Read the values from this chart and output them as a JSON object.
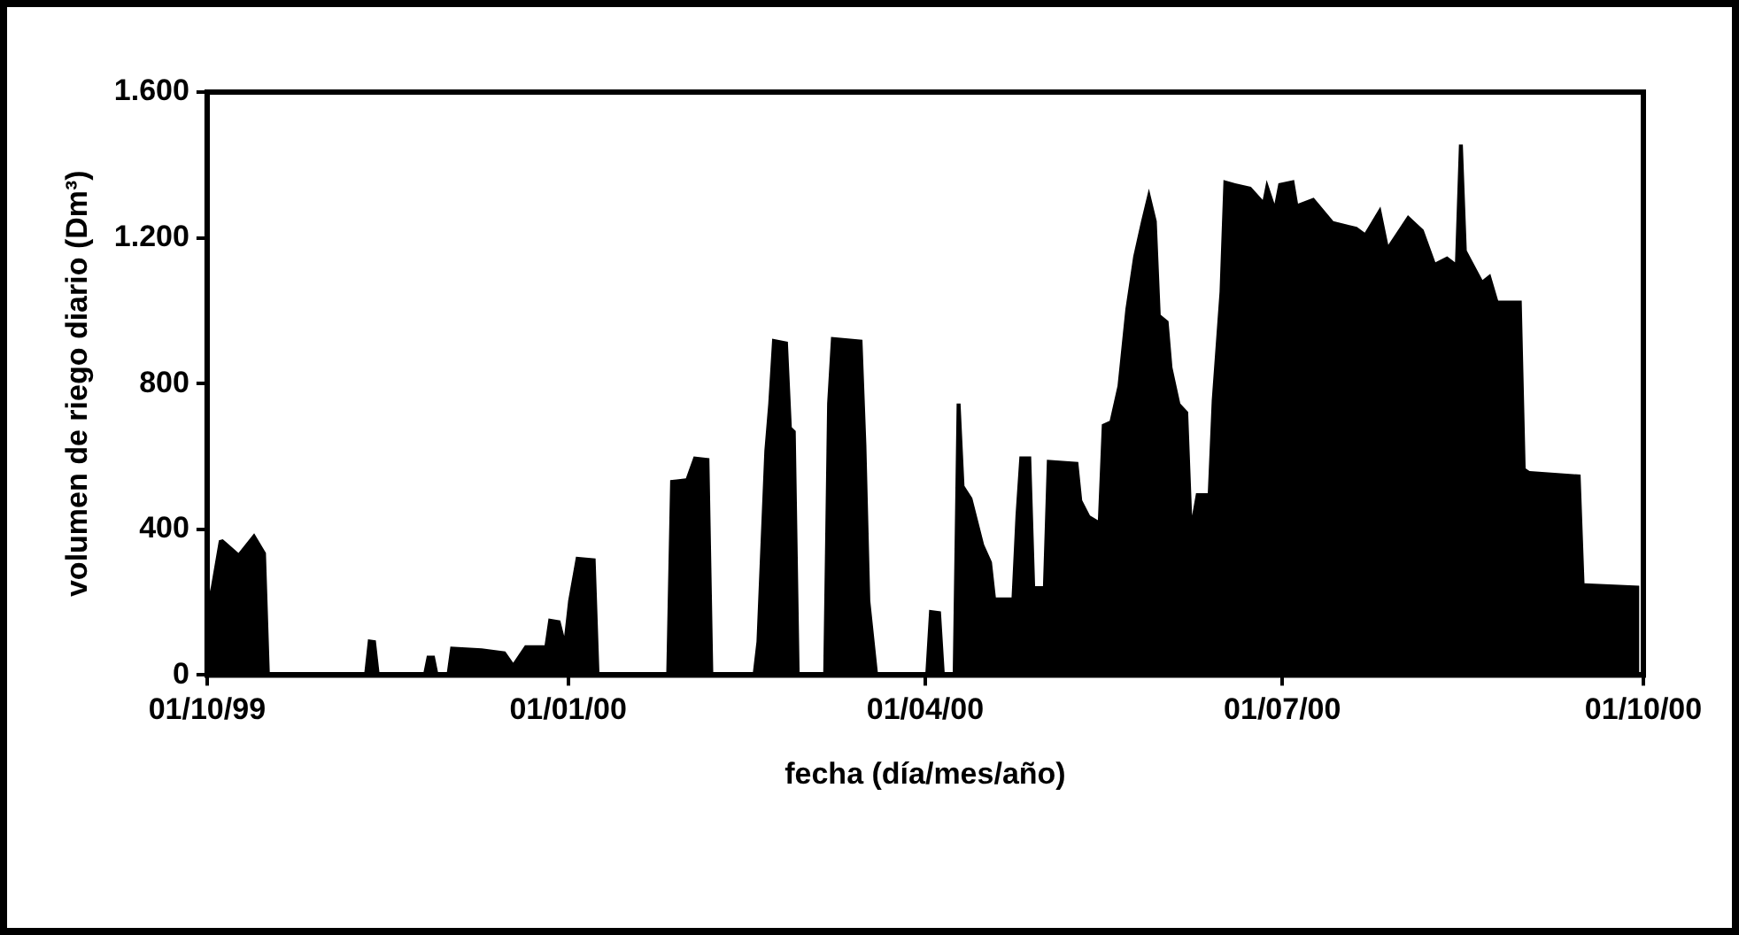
{
  "chart_data": {
    "type": "area",
    "xlabel": "fecha (día/mes/año)",
    "ylabel": "volumen de riego diario (Dm³)",
    "x": [
      "1999-10-01",
      "1999-10-02",
      "1999-10-04",
      "1999-10-05",
      "1999-10-09",
      "1999-10-13",
      "1999-10-16",
      "1999-10-17",
      "1999-11-10",
      "1999-11-11",
      "1999-11-13",
      "1999-11-14",
      "1999-11-25",
      "1999-11-26",
      "1999-11-28",
      "1999-11-29",
      "1999-12-01",
      "1999-12-02",
      "1999-12-10",
      "1999-12-16",
      "1999-12-18",
      "1999-12-21",
      "1999-12-26",
      "1999-12-27",
      "1999-12-30",
      "1999-12-31",
      "2000-01-01",
      "2000-01-03",
      "2000-01-08",
      "2000-01-09",
      "2000-01-26",
      "2000-01-27",
      "2000-01-31",
      "2000-02-02",
      "2000-02-06",
      "2000-02-07",
      "2000-02-17",
      "2000-02-18",
      "2000-02-20",
      "2000-02-21",
      "2000-02-22",
      "2000-02-26",
      "2000-02-27",
      "2000-02-28",
      "2000-02-29",
      "2000-03-06",
      "2000-03-07",
      "2000-03-08",
      "2000-03-16",
      "2000-03-17",
      "2000-03-18",
      "2000-03-20",
      "2000-04-01",
      "2000-04-02",
      "2000-04-05",
      "2000-04-06",
      "2000-04-08",
      "2000-04-09",
      "2000-04-10",
      "2000-04-11",
      "2000-04-13",
      "2000-04-16",
      "2000-04-18",
      "2000-04-19",
      "2000-04-23",
      "2000-04-24",
      "2000-04-25",
      "2000-04-28",
      "2000-04-29",
      "2000-05-01",
      "2000-05-02",
      "2000-05-10",
      "2000-05-11",
      "2000-05-13",
      "2000-05-15",
      "2000-05-16",
      "2000-05-18",
      "2000-05-20",
      "2000-05-22",
      "2000-05-24",
      "2000-05-26",
      "2000-05-28",
      "2000-05-30",
      "2000-05-31",
      "2000-06-02",
      "2000-06-03",
      "2000-06-05",
      "2000-06-07",
      "2000-06-08",
      "2000-06-09",
      "2000-06-12",
      "2000-06-13",
      "2000-06-15",
      "2000-06-16",
      "2000-06-19",
      "2000-06-23",
      "2000-06-26",
      "2000-06-27",
      "2000-06-29",
      "2000-06-30",
      "2000-07-04",
      "2000-07-05",
      "2000-07-09",
      "2000-07-14",
      "2000-07-20",
      "2000-07-22",
      "2000-07-26",
      "2000-07-28",
      "2000-08-02",
      "2000-08-06",
      "2000-08-09",
      "2000-08-12",
      "2000-08-14",
      "2000-08-15",
      "2000-08-16",
      "2000-08-17",
      "2000-08-21",
      "2000-08-23",
      "2000-08-25",
      "2000-08-31",
      "2000-09-01",
      "2000-09-02",
      "2000-09-15",
      "2000-09-16",
      "2000-09-30"
    ],
    "series": [
      {
        "color": "#000000",
        "values": [
          195,
          244,
          370,
          373,
          335,
          389,
          335,
          0,
          0,
          98,
          95,
          0,
          0,
          53,
          53,
          0,
          0,
          78,
          73,
          65,
          34,
          82,
          82,
          155,
          150,
          107,
          204,
          325,
          320,
          0,
          0,
          535,
          540,
          600,
          595,
          0,
          0,
          92,
          615,
          745,
          923,
          915,
          680,
          670,
          0,
          0,
          745,
          928,
          920,
          632,
          204,
          0,
          0,
          179,
          175,
          0,
          0,
          745,
          745,
          519,
          486,
          358,
          310,
          213,
          213,
          438,
          600,
          600,
          244,
          244,
          591,
          585,
          480,
          438,
          425,
          688,
          698,
          794,
          1004,
          1149,
          1246,
          1335,
          1246,
          989,
          971,
          844,
          745,
          722,
          438,
          499,
          499,
          753,
          1052,
          1359,
          1350,
          1340,
          1304,
          1359,
          1294,
          1350,
          1359,
          1294,
          1310,
          1246,
          1230,
          1214,
          1286,
          1181,
          1262,
          1222,
          1133,
          1149,
          1133,
          1456,
          1456,
          1165,
          1084,
          1101,
          1028,
          1028,
          567,
          560,
          550,
          252,
          245
        ]
      }
    ],
    "xlim": [
      "1999-10-01",
      "2000-10-01"
    ],
    "xticks": [
      {
        "value": "1999-10-01",
        "label": "01/10/99"
      },
      {
        "value": "2000-01-01",
        "label": "01/01/00"
      },
      {
        "value": "2000-04-01",
        "label": "01/04/00"
      },
      {
        "value": "2000-07-01",
        "label": "01/07/00"
      },
      {
        "value": "2000-10-01",
        "label": "01/10/00"
      }
    ],
    "ylim": [
      0,
      1600
    ],
    "yticks": [
      0,
      {
        "value": 400,
        "label": "400"
      },
      {
        "value": 800,
        "label": "800"
      },
      {
        "value": 1200,
        "label": "1.200"
      },
      {
        "value": 1600,
        "label": "1.600"
      }
    ],
    "grid": false,
    "legend": false,
    "marker": "none"
  }
}
